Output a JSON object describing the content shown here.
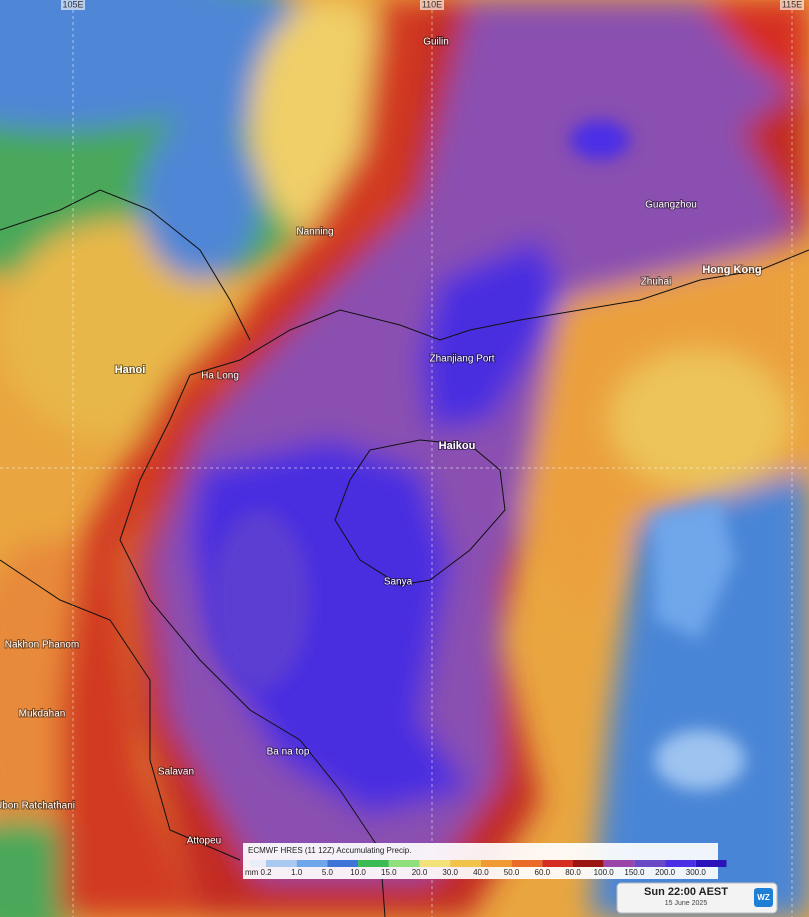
{
  "map": {
    "longitude_labels": [
      "105E",
      "110E",
      "115E"
    ],
    "places": [
      "Guilin",
      "Nanning",
      "Guangzhou",
      "Hong Kong",
      "Zhuhai",
      "Hanoi",
      "Ha Long",
      "Zhanjiang Port",
      "Haikou",
      "Sanya",
      "Nakhon Phanom",
      "Mukdahan",
      "Salavan",
      "Ba na top",
      "Ubon Ratchathani",
      "Attopeu"
    ]
  },
  "legend": {
    "title": "ECMWF HRES (11 12Z) Accumulating Precip.",
    "unit": "mm",
    "ticks": [
      "0.2",
      "1.0",
      "5.0",
      "10.0",
      "15.0",
      "20.0",
      "30.0",
      "40.0",
      "50.0",
      "60.0",
      "80.0",
      "100.0",
      "150.0",
      "200.0",
      "300.0"
    ],
    "colors": [
      "#e8eef8",
      "#a9c9f0",
      "#6fa6ea",
      "#3d74d8",
      "#3cba54",
      "#8fe07c",
      "#f3e27a",
      "#f2c34a",
      "#f09a33",
      "#ea6a2a",
      "#d62d23",
      "#9a1414",
      "#9b45a8",
      "#6a49c6",
      "#4b2fe6",
      "#2a13b8"
    ]
  },
  "timestamp": {
    "time": "Sun 22:00 AEST",
    "date": "15 June 2025",
    "logo": "WZ"
  }
}
